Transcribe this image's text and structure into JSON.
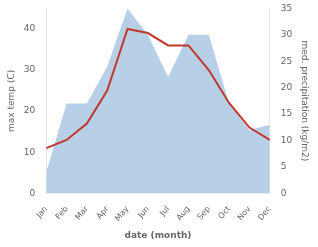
{
  "chart_data": {
    "type": "line",
    "xlabel": "date (month)",
    "ylabel": "max temp (C)",
    "y2label": "med. precipitation (kg/m2)",
    "categories": [
      "Jan",
      "Feb",
      "Mar",
      "Apr",
      "May",
      "Jun",
      "Jul",
      "Aug",
      "Sep",
      "Oct",
      "Nov",
      "Dec"
    ],
    "series": [
      {
        "type": "area",
        "color": "#b8cfe8",
        "axis": "y2",
        "values": [
          4,
          17,
          17,
          24,
          35,
          30,
          22,
          30,
          30,
          17,
          12,
          13
        ]
      },
      {
        "type": "line",
        "color": "#c0392b",
        "values": [
          11,
          13,
          17,
          25,
          40,
          39,
          36,
          36,
          30,
          22,
          16,
          13
        ]
      }
    ],
    "ylim": [
      0,
      45
    ],
    "yticks": [
      0,
      10,
      20,
      30,
      40
    ],
    "y2lim": [
      0,
      35
    ],
    "y2ticks": [
      0,
      5,
      10,
      15,
      20,
      25,
      30,
      35
    ],
    "grid": false
  }
}
